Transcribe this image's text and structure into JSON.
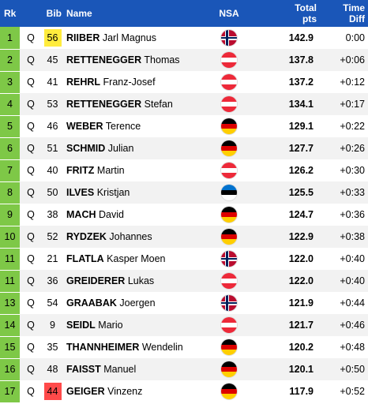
{
  "header": {
    "rk": "Rk",
    "bib": "Bib",
    "name": "Name",
    "nsa": "NSA",
    "pts_line1": "Total",
    "pts_line2": "pts",
    "diff_line1": "Time",
    "diff_line2": "Diff"
  },
  "rows": [
    {
      "rk": "1",
      "q": "Q",
      "bib": "56",
      "bib_color": "yellow",
      "last": "RIIBER",
      "first": "Jarl Magnus",
      "nsa": "NOR",
      "pts": "142.9",
      "diff": "0:00"
    },
    {
      "rk": "2",
      "q": "Q",
      "bib": "45",
      "bib_color": "",
      "last": "RETTENEGGER",
      "first": "Thomas",
      "nsa": "AUT",
      "pts": "137.8",
      "diff": "+0:06"
    },
    {
      "rk": "3",
      "q": "Q",
      "bib": "41",
      "bib_color": "",
      "last": "REHRL",
      "first": "Franz-Josef",
      "nsa": "AUT",
      "pts": "137.2",
      "diff": "+0:12"
    },
    {
      "rk": "4",
      "q": "Q",
      "bib": "53",
      "bib_color": "",
      "last": "RETTENEGGER",
      "first": "Stefan",
      "nsa": "AUT",
      "pts": "134.1",
      "diff": "+0:17"
    },
    {
      "rk": "5",
      "q": "Q",
      "bib": "46",
      "bib_color": "",
      "last": "WEBER",
      "first": "Terence",
      "nsa": "GER",
      "pts": "129.1",
      "diff": "+0:22"
    },
    {
      "rk": "6",
      "q": "Q",
      "bib": "51",
      "bib_color": "",
      "last": "SCHMID",
      "first": "Julian",
      "nsa": "GER",
      "pts": "127.7",
      "diff": "+0:26"
    },
    {
      "rk": "7",
      "q": "Q",
      "bib": "40",
      "bib_color": "",
      "last": "FRITZ",
      "first": "Martin",
      "nsa": "AUT",
      "pts": "126.2",
      "diff": "+0:30"
    },
    {
      "rk": "8",
      "q": "Q",
      "bib": "50",
      "bib_color": "",
      "last": "ILVES",
      "first": "Kristjan",
      "nsa": "EST",
      "pts": "125.5",
      "diff": "+0:33"
    },
    {
      "rk": "9",
      "q": "Q",
      "bib": "38",
      "bib_color": "",
      "last": "MACH",
      "first": "David",
      "nsa": "GER",
      "pts": "124.7",
      "diff": "+0:36"
    },
    {
      "rk": "10",
      "q": "Q",
      "bib": "52",
      "bib_color": "",
      "last": "RYDZEK",
      "first": "Johannes",
      "nsa": "GER",
      "pts": "122.9",
      "diff": "+0:38"
    },
    {
      "rk": "11",
      "q": "Q",
      "bib": "21",
      "bib_color": "",
      "last": "FLATLA",
      "first": "Kasper Moen",
      "nsa": "NOR",
      "pts": "122.0",
      "diff": "+0:40"
    },
    {
      "rk": "11",
      "q": "Q",
      "bib": "36",
      "bib_color": "",
      "last": "GREIDERER",
      "first": "Lukas",
      "nsa": "AUT",
      "pts": "122.0",
      "diff": "+0:40"
    },
    {
      "rk": "13",
      "q": "Q",
      "bib": "54",
      "bib_color": "",
      "last": "GRAABAK",
      "first": "Joergen",
      "nsa": "NOR",
      "pts": "121.9",
      "diff": "+0:44"
    },
    {
      "rk": "14",
      "q": "Q",
      "bib": "9",
      "bib_color": "",
      "last": "SEIDL",
      "first": "Mario",
      "nsa": "AUT",
      "pts": "121.7",
      "diff": "+0:46"
    },
    {
      "rk": "15",
      "q": "Q",
      "bib": "35",
      "bib_color": "",
      "last": "THANNHEIMER",
      "first": "Wendelin",
      "nsa": "GER",
      "pts": "120.2",
      "diff": "+0:48"
    },
    {
      "rk": "16",
      "q": "Q",
      "bib": "48",
      "bib_color": "",
      "last": "FAISST",
      "first": "Manuel",
      "nsa": "GER",
      "pts": "120.1",
      "diff": "+0:50"
    },
    {
      "rk": "17",
      "q": "Q",
      "bib": "44",
      "bib_color": "red",
      "last": "GEIGER",
      "first": "Vinzenz",
      "nsa": "GER",
      "pts": "117.9",
      "diff": "+0:52"
    }
  ],
  "colors": {
    "header_bg": "#1a56b8",
    "rank_bg": "#7ec847",
    "bib_yellow": "#ffec3d",
    "bib_red": "#ff4a4a"
  }
}
